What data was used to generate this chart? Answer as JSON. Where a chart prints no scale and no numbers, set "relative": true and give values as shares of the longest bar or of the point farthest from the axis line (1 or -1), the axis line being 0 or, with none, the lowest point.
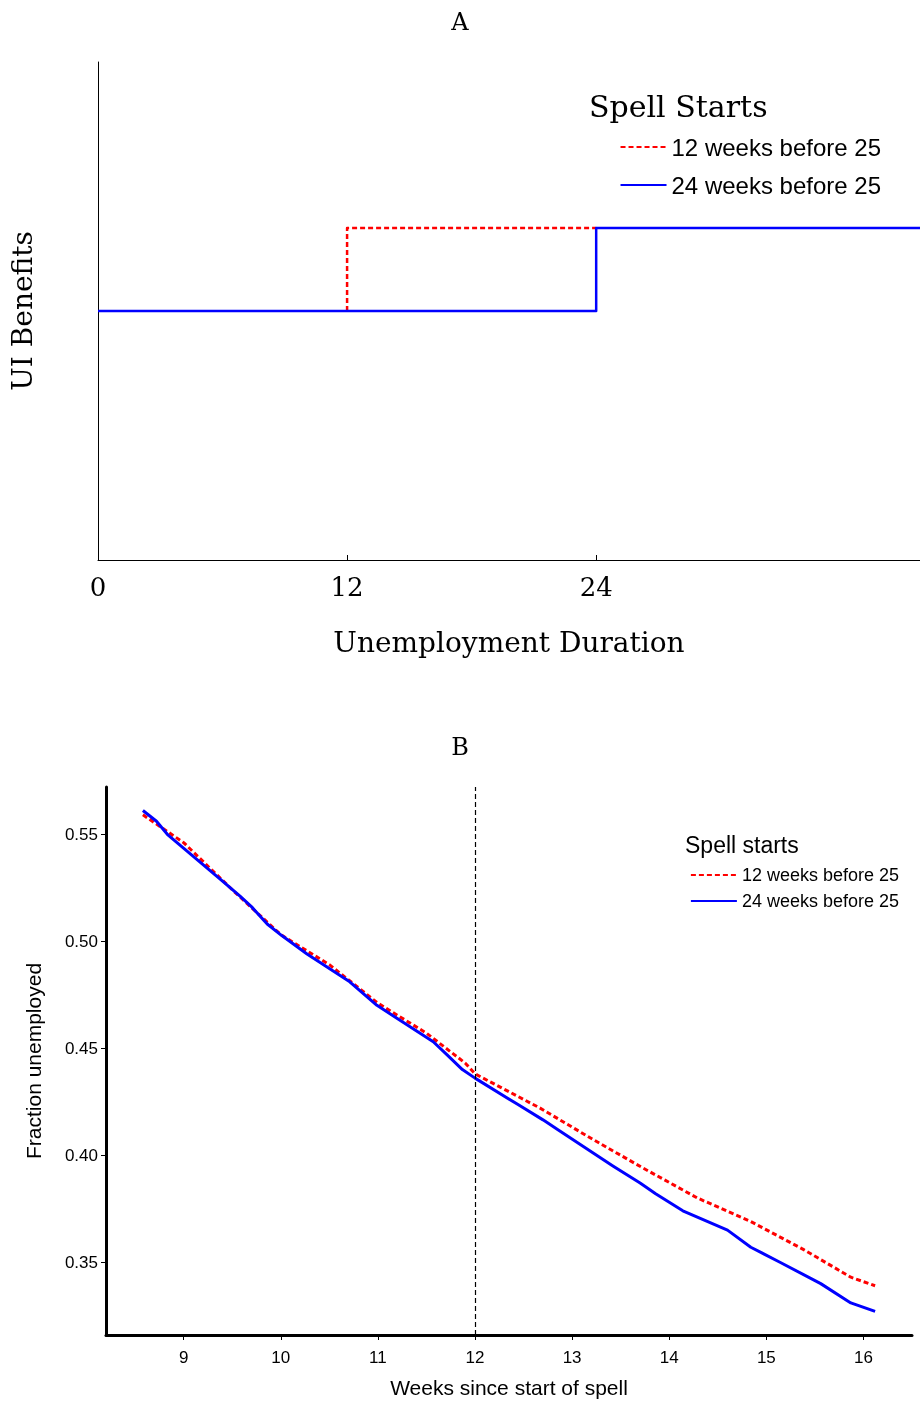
{
  "chart_data": [
    {
      "type": "step",
      "title": "A",
      "xlabel": "Unemployment Duration",
      "ylabel": "UI Benefits",
      "legend_title": "Spell Starts",
      "relative": true,
      "xlim": [
        0,
        39.6
      ],
      "xticks": [
        0,
        12,
        24
      ],
      "tick_labels": "x",
      "legend": "top right",
      "grid": false,
      "series": [
        {
          "name": "12 weeks before 25",
          "color": "#ff0000",
          "line_style": "dashed",
          "x": [
            12,
            12,
            24
          ],
          "values": [
            0.75,
            1,
            1
          ]
        },
        {
          "name": "24 weeks before 25",
          "color": "#0000ff",
          "line_style": "solid",
          "x": [
            0,
            24,
            24,
            39.6
          ],
          "values": [
            0.75,
            0.75,
            1,
            1
          ]
        }
      ]
    },
    {
      "type": "line",
      "title": "B",
      "xlabel": "Weeks since start of spell",
      "ylabel": "Fraction unemployed",
      "legend_title": "Spell starts",
      "xlim": [
        8.2,
        16.5
      ],
      "xticks": [
        9,
        10,
        11,
        12,
        13,
        14,
        15,
        16
      ],
      "ylim": [
        0.316,
        0.572
      ],
      "yticks": [
        {
          "value": 0.35,
          "label": "0.35"
        },
        {
          "value": 0.4,
          "label": "0.40"
        },
        {
          "value": 0.45,
          "label": "0.45"
        },
        {
          "value": 0.5,
          "label": "0.50"
        },
        {
          "value": 0.55,
          "label": "0.55"
        }
      ],
      "legend": "top right",
      "grid": false,
      "ref_lines": [
        {
          "axis": "x",
          "value": 12,
          "color": "#000000",
          "line_style": "dashed"
        }
      ],
      "series": [
        {
          "name": "12 weeks before 25",
          "color": "#ff0000",
          "line_style": "dashed",
          "x": [
            8.58,
            9,
            9.5,
            10,
            10.5,
            11,
            11.5,
            11.9,
            12,
            12.67,
            13.19,
            13.73,
            14.29,
            14.84,
            15.38,
            15.87,
            16.12
          ],
          "values": [
            0.559,
            0.546,
            0.524,
            0.503,
            0.489,
            0.471,
            0.457,
            0.443,
            0.438,
            0.422,
            0.408,
            0.394,
            0.38,
            0.369,
            0.356,
            0.343,
            0.339
          ]
        },
        {
          "name": "24 weeks before 25",
          "color": "#0000ff",
          "line_style": "solid",
          "x": [
            8.58,
            8.72,
            8.84,
            9.4,
            9.58,
            9.7,
            9.86,
            10.01,
            10.27,
            10.71,
            10.99,
            11.57,
            11.71,
            11.87,
            12,
            12.43,
            12.7,
            12.85,
            13.42,
            13.7,
            13.86,
            14.14,
            14.6,
            14.84,
            15.14,
            15.56,
            15.87,
            16.12
          ],
          "values": [
            0.561,
            0.556,
            0.5495,
            0.528,
            0.521,
            0.516,
            0.508,
            0.5026,
            0.494,
            0.481,
            0.47,
            0.453,
            0.447,
            0.44,
            0.436,
            0.424,
            0.4165,
            0.412,
            0.395,
            0.387,
            0.382,
            0.374,
            0.365,
            0.357,
            0.35,
            0.34,
            0.331,
            0.327
          ]
        }
      ]
    }
  ]
}
